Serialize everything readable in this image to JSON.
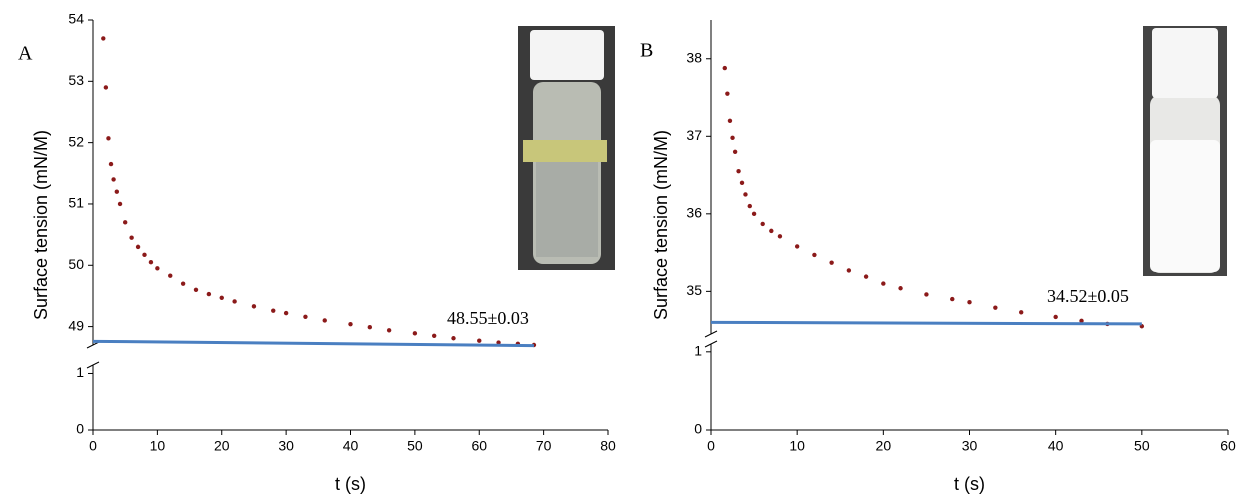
{
  "chart_data": [
    {
      "type": "scatter",
      "panel_label": "A",
      "x_label": "t (s)",
      "y_label": "Surface tension (mN/M)",
      "annotation": "48.55±0.03",
      "xlim": [
        0,
        80
      ],
      "xticks": [
        0,
        10,
        20,
        30,
        40,
        50,
        60,
        70,
        80
      ],
      "ylim": [
        0,
        54
      ],
      "ybreak": [
        1.15,
        48.7
      ],
      "yticks": [
        0,
        1,
        49,
        50,
        51,
        52,
        53,
        54
      ],
      "series": [
        {
          "color": "#8b1a1a",
          "x": [
            1.6,
            2.0,
            2.4,
            2.8,
            3.2,
            3.7,
            4.2,
            5,
            6,
            7,
            8,
            9,
            10,
            12,
            14,
            16,
            18,
            20,
            22,
            25,
            28,
            30,
            33,
            36,
            40,
            43,
            46,
            50,
            53,
            56,
            60,
            63,
            66,
            68.5
          ],
          "values": [
            53.7,
            52.9,
            52.07,
            51.65,
            51.4,
            51.2,
            51.0,
            50.7,
            50.45,
            50.3,
            50.17,
            50.05,
            49.95,
            49.83,
            49.7,
            49.6,
            49.53,
            49.47,
            49.41,
            49.33,
            49.26,
            49.22,
            49.16,
            49.1,
            49.04,
            48.99,
            48.94,
            48.89,
            48.85,
            48.81,
            48.77,
            48.74,
            48.72,
            48.7
          ]
        },
        {
          "type": "line",
          "color": "#4a7fc1",
          "x": [
            0,
            68.5
          ],
          "values": [
            48.76,
            48.69
          ]
        }
      ]
    },
    {
      "type": "scatter",
      "panel_label": "B",
      "x_label": "t (s)",
      "y_label": "Surface tension (mN/M)",
      "annotation": "34.52±0.05",
      "xlim": [
        0,
        60
      ],
      "xticks": [
        0,
        10,
        20,
        30,
        40,
        50,
        60
      ],
      "ylim": [
        0,
        38.5
      ],
      "ybreak": [
        1.1,
        34.45
      ],
      "yticks": [
        0,
        1,
        35,
        36,
        37,
        38
      ],
      "series": [
        {
          "color": "#8b1a1a",
          "x": [
            1.6,
            1.9,
            2.2,
            2.5,
            2.8,
            3.2,
            3.6,
            4.0,
            4.5,
            5,
            6,
            7,
            8,
            10,
            12,
            14,
            16,
            18,
            20,
            22,
            25,
            28,
            30,
            33,
            36,
            40,
            43,
            46,
            50
          ],
          "values": [
            37.88,
            37.55,
            37.2,
            36.98,
            36.8,
            36.55,
            36.4,
            36.25,
            36.1,
            36.0,
            35.87,
            35.78,
            35.71,
            35.58,
            35.47,
            35.37,
            35.27,
            35.19,
            35.1,
            35.04,
            34.96,
            34.9,
            34.86,
            34.79,
            34.73,
            34.67,
            34.62,
            34.58,
            34.55
          ]
        },
        {
          "type": "line",
          "color": "#4a7fc1",
          "x": [
            0,
            50
          ],
          "values": [
            34.6,
            34.58
          ]
        }
      ]
    }
  ]
}
